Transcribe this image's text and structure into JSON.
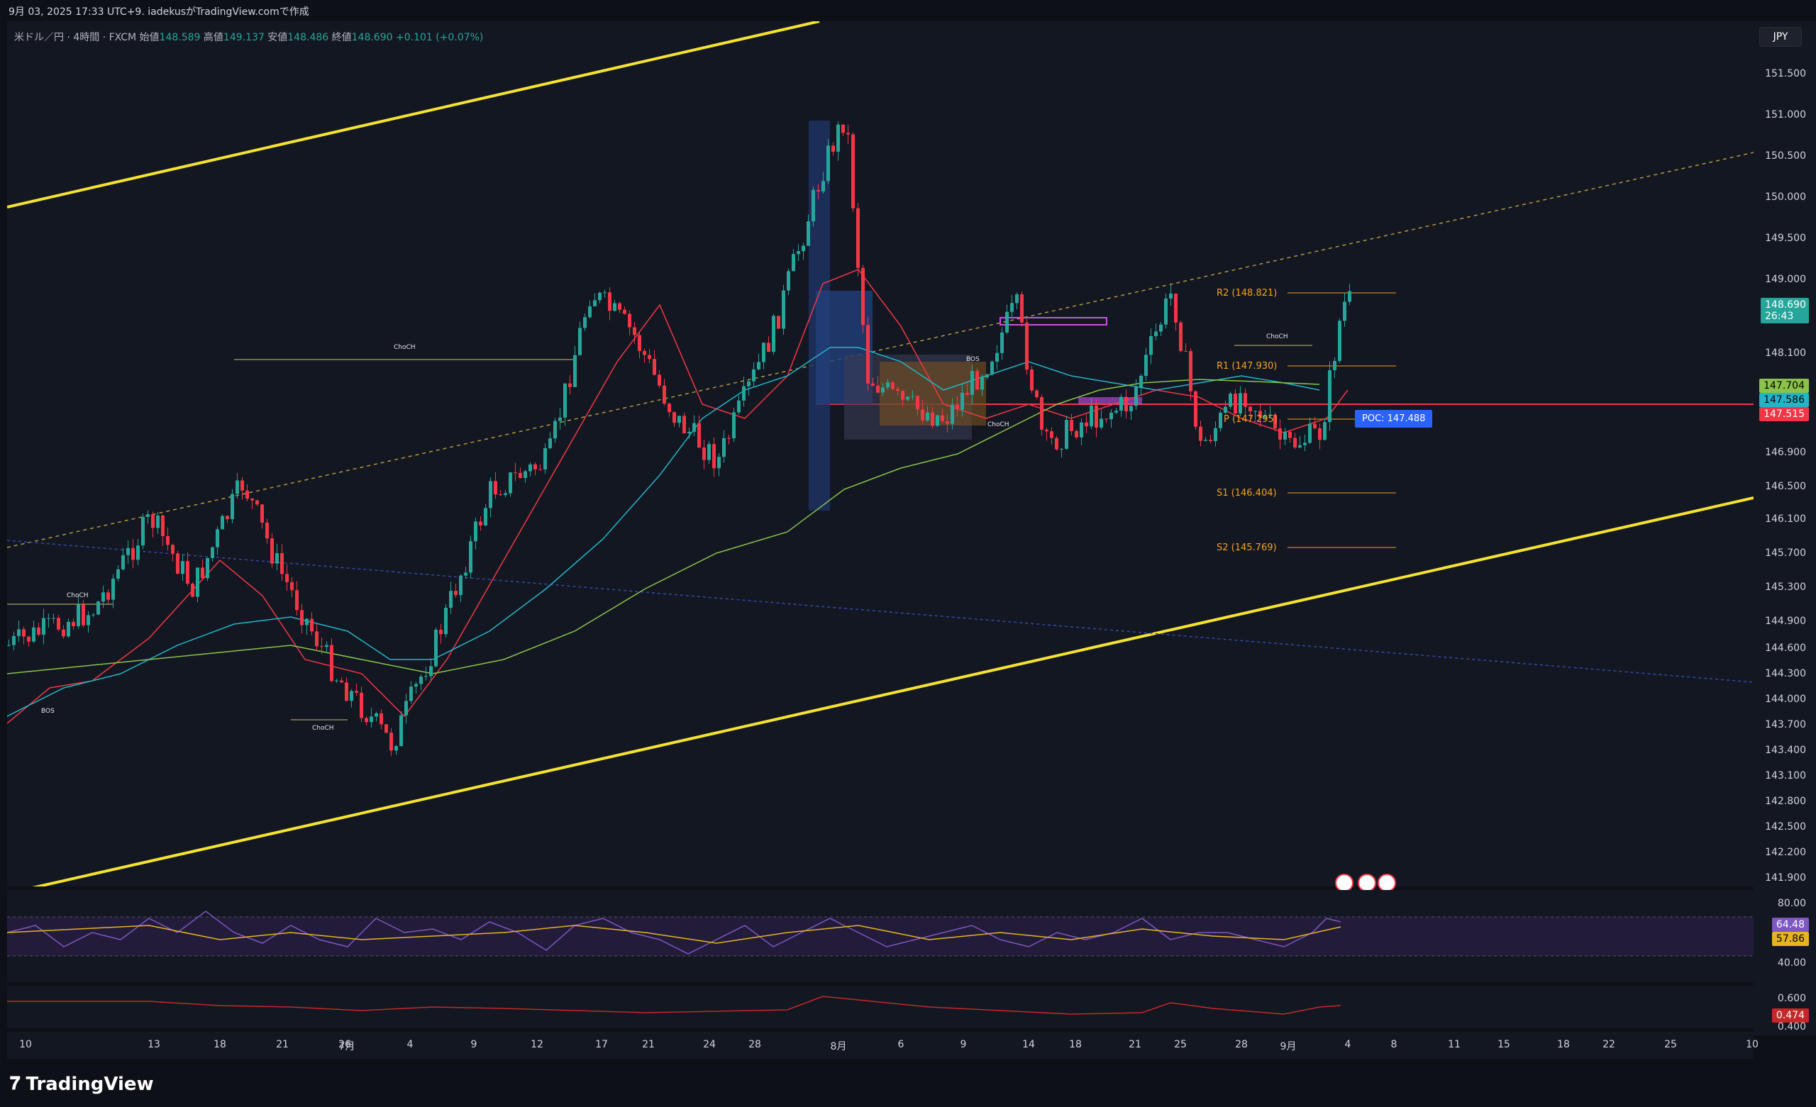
{
  "header": {
    "snapshot_line": "9月 03, 2025 17:33 UTC+9.  iadekusがTradingView.comで作成",
    "symbol": "米ドル／円 · 4時間 · FXCM",
    "open_label": "始値",
    "open": "148.589",
    "high_label": "高値",
    "high": "149.137",
    "low_label": "安値",
    "low": "148.486",
    "close_label": "終値",
    "close": "148.690",
    "change": "+0.101 (+0.07%)"
  },
  "currency_badge": "JPY",
  "y_axis_ticks": [
    "151.500",
    "151.000",
    "150.500",
    "150.000",
    "149.500",
    "149.000",
    "148.690",
    "26:43",
    "148.100",
    "147.704",
    "147.586",
    "147.515",
    "146.900",
    "146.500",
    "146.100",
    "145.700",
    "145.300",
    "144.900",
    "144.600",
    "144.300",
    "144.000",
    "143.700",
    "143.400",
    "143.100",
    "142.800",
    "142.500",
    "142.200",
    "141.900",
    "80.00",
    "64.48",
    "57.86",
    "40.00",
    "0.600",
    "0.474",
    "0.400"
  ],
  "price_tags": {
    "last": "148.690",
    "countdown": "26:43",
    "ma1": "147.704",
    "ma2": "147.586",
    "poc_line": "147.515",
    "rsi": "64.48",
    "rsi_ma": "57.86",
    "osc": "0.474"
  },
  "x_axis_ticks": [
    "10",
    "13",
    "18",
    "21",
    "26",
    "7月",
    "4",
    "9",
    "12",
    "17",
    "21",
    "24",
    "28",
    "8月",
    "6",
    "9",
    "14",
    "18",
    "21",
    "25",
    "28",
    "9月",
    "4",
    "8",
    "11",
    "15",
    "18",
    "22",
    "25",
    "10"
  ],
  "annotations": {
    "choch": "ChoCH",
    "bos": "BOS",
    "r2": "R2 (148.821)",
    "r1": "R1 (147.930)",
    "p": "P (147.295)",
    "s1": "S1 (146.404)",
    "s2": "S2 (145.769)",
    "poc": "POC: 147.488"
  },
  "colors": {
    "bull": "#26a69a",
    "bear": "#f23645",
    "channel": "#f5e330",
    "ema_red": "#f23645",
    "ema_teal": "#21b6c7",
    "ema_green": "#8bc34a",
    "pivot": "#f7a21b",
    "rsi": "#7e57c2"
  },
  "footer": {
    "brand": "TradingView"
  },
  "icons": [
    "us-flag-icon",
    "tradingview-logo-icon"
  ]
}
